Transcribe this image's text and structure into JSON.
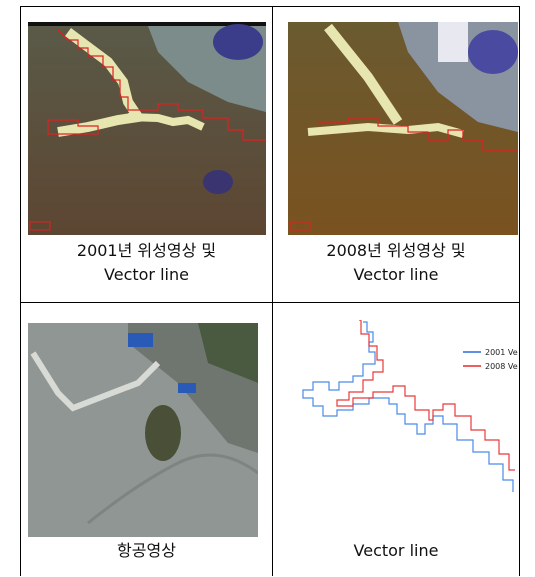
{
  "cells": [
    {
      "caption": [
        "2001년 위성영상 및",
        "Vector line"
      ]
    },
    {
      "caption": [
        "2008년 위성영상 및",
        "Vector line"
      ]
    },
    {
      "caption": [
        "항공영상"
      ]
    },
    {
      "caption": [
        "Vector line"
      ],
      "legend": [
        "2001 Ve",
        "2008 Ve"
      ]
    }
  ]
}
